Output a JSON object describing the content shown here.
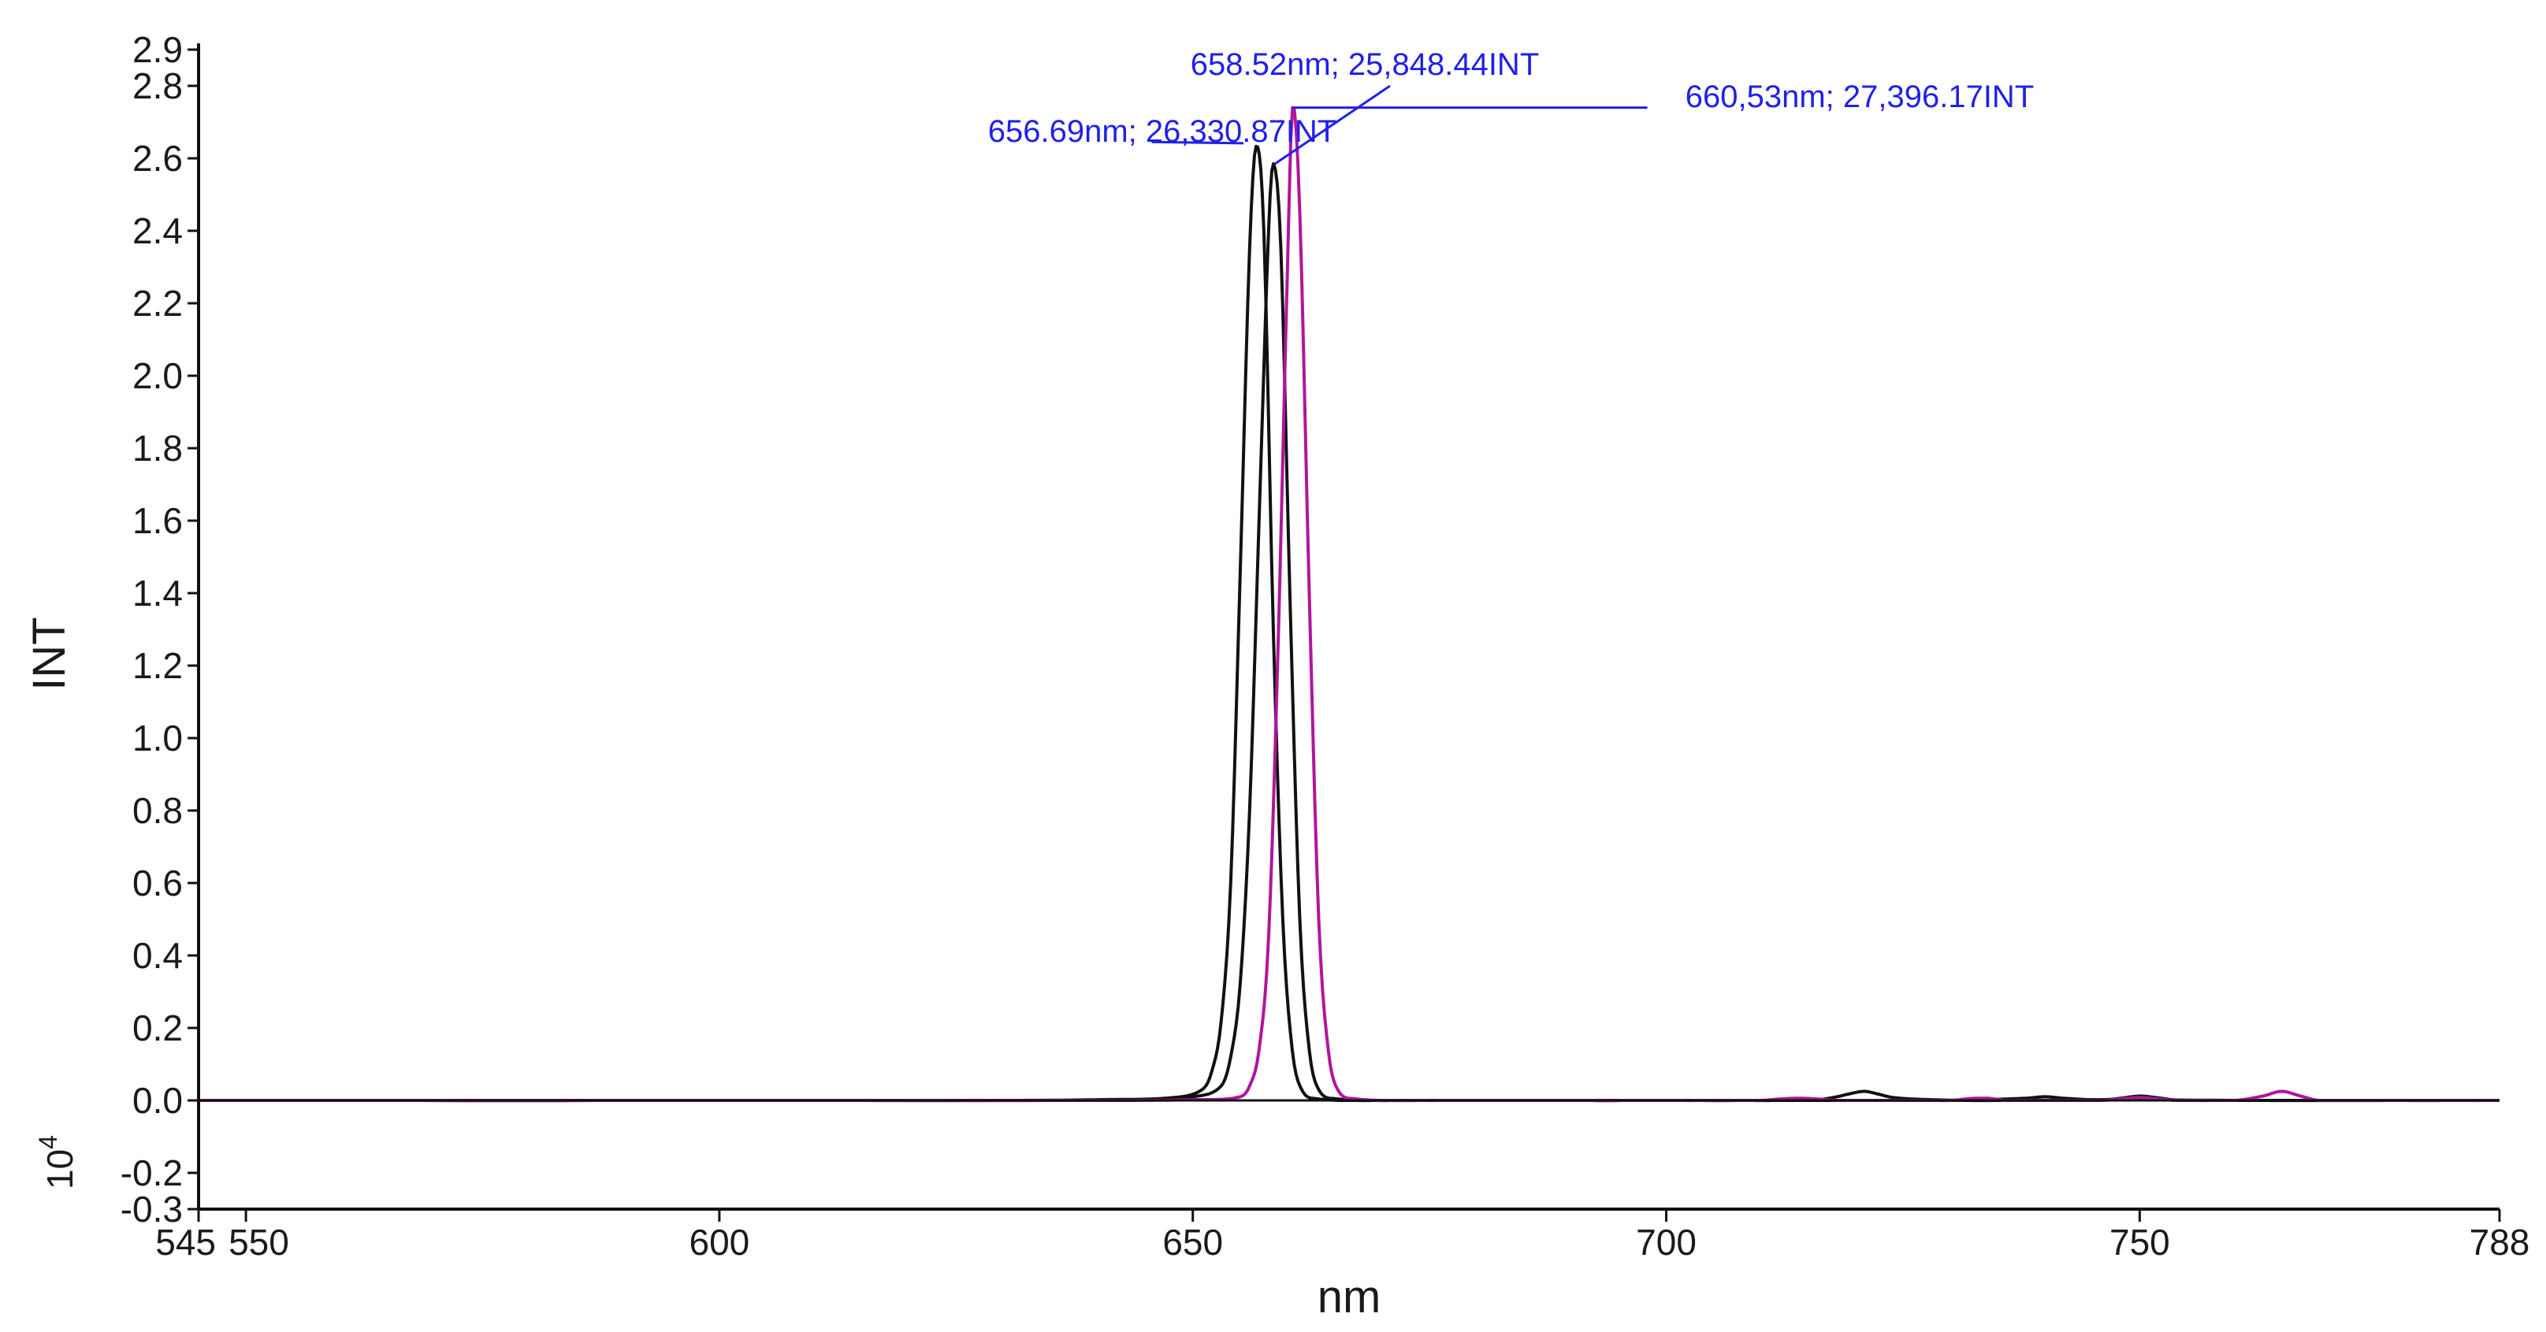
{
  "chart_data": {
    "type": "line",
    "xlabel": "nm",
    "ylabel": "INT",
    "y_multiplier_label": "10",
    "y_multiplier_exponent": "4",
    "xlim": [
      545,
      788
    ],
    "ylim": [
      -0.3,
      2.9
    ],
    "x_ticks": [
      545,
      550,
      600,
      650,
      700,
      750,
      788
    ],
    "x_tick_labels": [
      "545",
      "550",
      "600",
      "650",
      "700",
      "750",
      "788"
    ],
    "y_ticks": [
      -0.3,
      -0.2,
      0.0,
      0.2,
      0.4,
      0.6,
      0.8,
      1.0,
      1.2,
      1.4,
      1.6,
      1.8,
      2.0,
      2.2,
      2.4,
      2.6,
      2.8,
      2.9
    ],
    "y_tick_labels": [
      "-0.3",
      "-0.2",
      "0.0",
      "0.2",
      "0.4",
      "0.6",
      "0.8",
      "1.0",
      "1.2",
      "1.4",
      "1.6",
      "1.8",
      "2.0",
      "2.2",
      "2.4",
      "2.6",
      "2.8",
      "2.9"
    ],
    "grid": false,
    "series": [
      {
        "color": "#111111",
        "x": [
          545,
          630,
          640,
          648,
          651,
          652,
          653,
          654,
          655,
          656,
          656.69,
          657.5,
          658.5,
          659.5,
          660.5,
          661.5,
          663,
          670,
          700,
          712,
          716,
          718,
          720,
          721,
          722,
          724,
          728,
          735,
          738,
          740,
          742,
          745,
          750,
          755,
          788
        ],
        "y": [
          0,
          0,
          0.002,
          0.008,
          0.03,
          0.08,
          0.22,
          0.6,
          1.45,
          2.35,
          2.633,
          2.4,
          1.3,
          0.5,
          0.14,
          0.03,
          0.005,
          0,
          0,
          0,
          0.002,
          0.01,
          0.022,
          0.025,
          0.02,
          0.008,
          0.002,
          0,
          0.005,
          0.01,
          0.005,
          0.002,
          0.004,
          0,
          0
        ]
      },
      {
        "color": "#111111",
        "x": [
          545,
          635,
          645,
          650,
          653,
          654,
          655,
          656,
          657,
          658,
          658.52,
          659.3,
          660.3,
          661.3,
          662.3,
          663.3,
          665,
          672,
          700,
          730,
          738,
          740,
          742,
          746,
          748,
          750,
          752,
          754,
          788
        ],
        "y": [
          0,
          0,
          0.002,
          0.01,
          0.04,
          0.12,
          0.32,
          0.8,
          1.6,
          2.4,
          2.585,
          2.35,
          1.35,
          0.5,
          0.14,
          0.03,
          0.005,
          0,
          0,
          0,
          0.006,
          0.01,
          0.006,
          0.001,
          0.006,
          0.012,
          0.007,
          0.001,
          0
        ]
      },
      {
        "color": "#b0169a",
        "x": [
          545,
          640,
          650,
          655,
          656,
          657,
          658,
          659,
          660,
          660.53,
          661.3,
          662.3,
          663.3,
          664.3,
          665.3,
          667,
          674,
          700,
          710,
          712,
          714,
          716,
          718,
          730,
          732,
          734,
          736,
          746,
          748,
          750,
          752,
          754,
          760,
          763,
          765,
          767,
          769,
          788
        ],
        "y": [
          0,
          0,
          0.002,
          0.01,
          0.04,
          0.14,
          0.45,
          1.25,
          2.3,
          2.74,
          2.45,
          1.4,
          0.5,
          0.14,
          0.03,
          0.005,
          0,
          0,
          0,
          0.004,
          0.006,
          0.004,
          0,
          0,
          0.005,
          0.006,
          0,
          0,
          0.004,
          0.008,
          0.004,
          0,
          0,
          0.012,
          0.025,
          0.012,
          0,
          0
        ]
      }
    ],
    "annotations": [
      {
        "text": "658.52nm; 25,848.44INT",
        "x": 658.52,
        "y": 2.585,
        "label_anchor_x": 666,
        "label_anchor_y": 2.8
      },
      {
        "text": "660,53nm; 27,396.17INT",
        "x": 660.53,
        "y": 2.74,
        "label_anchor_x": 698,
        "label_anchor_y": 2.74
      },
      {
        "text": "656.69nm; 26,330.87INT",
        "x": 656.69,
        "y": 2.633,
        "label_anchor_x": 644,
        "label_anchor_y": 2.645
      }
    ],
    "annotation_color": "#2020e8"
  }
}
